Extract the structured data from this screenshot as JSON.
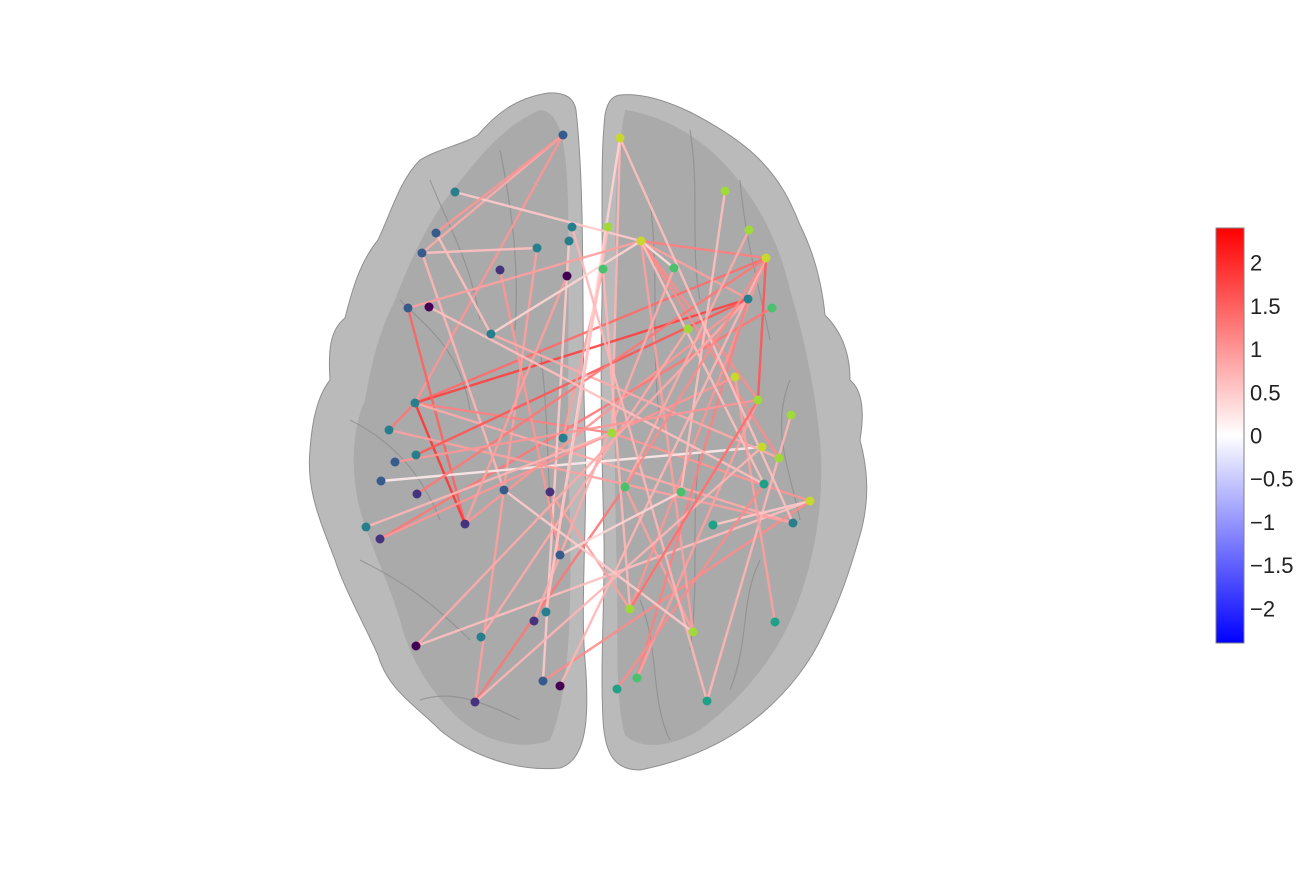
{
  "figure": {
    "hemispheres": [
      "left",
      "right"
    ],
    "brain_color": "#a6a6a6"
  },
  "colorbar": {
    "min": -2.4,
    "max": 2.4,
    "ticks": [
      2,
      1.5,
      1,
      0.5,
      0,
      -0.5,
      -1,
      -1.5,
      -2
    ],
    "tick_labels": [
      "2",
      "1.5",
      "1",
      "0.5",
      "0",
      "−0.5",
      "−1",
      "−1.5",
      "−2"
    ],
    "color_low": "#0000ff",
    "color_mid": "#ffffff",
    "color_high": "#ff0000"
  },
  "node_colors": [
    "#440154",
    "#46337e",
    "#365c8d",
    "#277f8e",
    "#1fa187",
    "#4ac16d",
    "#a0da39",
    "#c8d82e"
  ]
}
